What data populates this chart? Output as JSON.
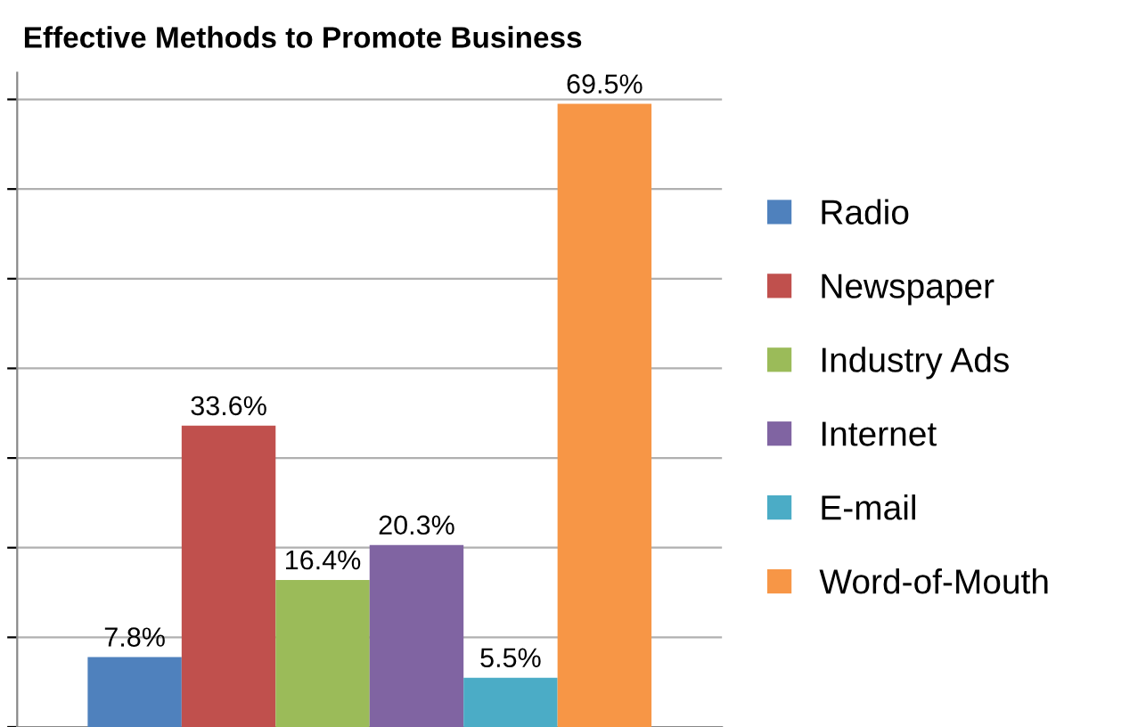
{
  "chart_data": {
    "type": "bar",
    "title": "Effective Methods to Promote Business",
    "categories": [
      null
    ],
    "series": [
      {
        "name": "Radio",
        "color": "#4f81bd",
        "values": [
          7.8
        ],
        "value_labels": [
          "7.8%"
        ]
      },
      {
        "name": "Newspaper",
        "color": "#c0504d",
        "values": [
          33.6
        ],
        "value_labels": [
          "33.6%"
        ]
      },
      {
        "name": "Industry Ads",
        "color": "#9bbb59",
        "values": [
          16.4
        ],
        "value_labels": [
          "16.4%"
        ]
      },
      {
        "name": "Internet",
        "color": "#8064a2",
        "values": [
          20.3
        ],
        "value_labels": [
          "20.3%"
        ]
      },
      {
        "name": "E-mail",
        "color": "#4bacc6",
        "values": [
          5.5
        ],
        "value_labels": [
          "5.5%"
        ]
      },
      {
        "name": "Word-of-Mouth",
        "color": "#f79646",
        "values": [
          69.5
        ],
        "value_labels": [
          "69.5%"
        ]
      }
    ],
    "grid": "y",
    "legend": "right"
  }
}
